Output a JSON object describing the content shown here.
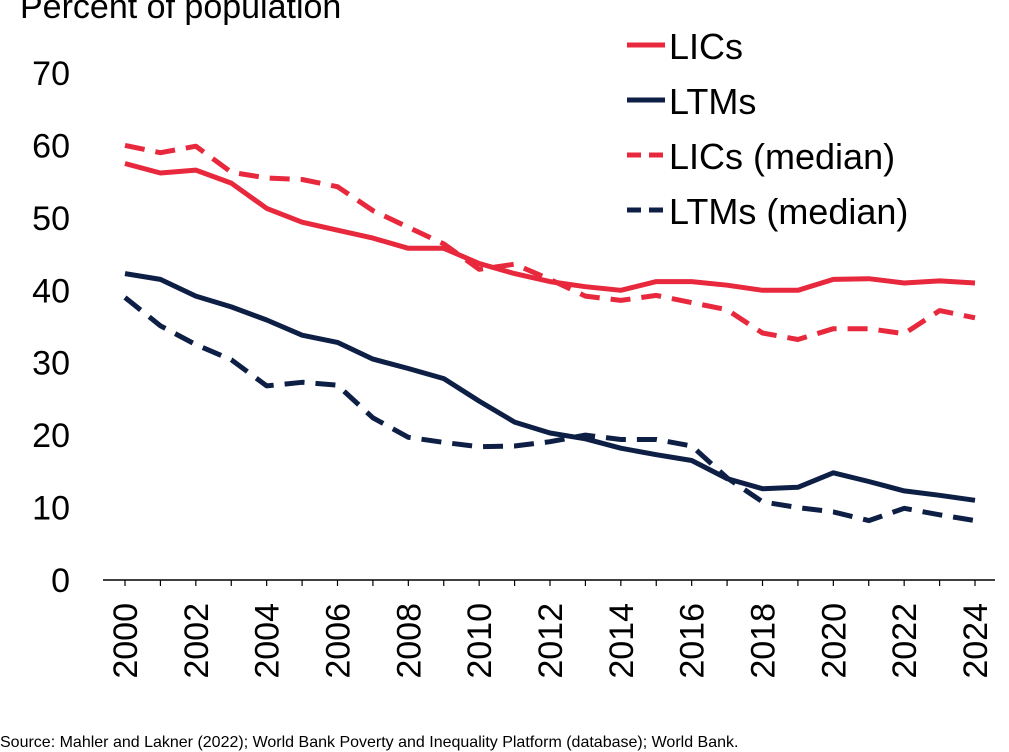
{
  "chart_data": {
    "type": "line",
    "ylabel": "Percent of population",
    "ylim": [
      0,
      70
    ],
    "yticks": [
      0,
      10,
      20,
      30,
      40,
      50,
      60,
      70
    ],
    "x": [
      2000,
      2001,
      2002,
      2003,
      2004,
      2005,
      2006,
      2007,
      2008,
      2009,
      2010,
      2011,
      2012,
      2013,
      2014,
      2015,
      2016,
      2017,
      2018,
      2019,
      2020,
      2021,
      2022,
      2023,
      2024
    ],
    "xticks": [
      2000,
      2002,
      2004,
      2006,
      2008,
      2010,
      2012,
      2014,
      2016,
      2018,
      2020,
      2022,
      2024
    ],
    "grid": false,
    "legend_position": "top-right",
    "series": [
      {
        "name": "LICs",
        "color": "#e8283c",
        "dash": "solid",
        "values": [
          57.5,
          56.2,
          56.6,
          54.8,
          51.3,
          49.4,
          48.3,
          47.2,
          45.8,
          45.8,
          43.7,
          42.3,
          41.2,
          40.5,
          40.0,
          41.2,
          41.2,
          40.7,
          40.0,
          40.0,
          41.5,
          41.6,
          41.0,
          41.3,
          41.0
        ]
      },
      {
        "name": "LTMs",
        "color": "#0e1f45",
        "dash": "solid",
        "values": [
          42.3,
          41.5,
          39.2,
          37.7,
          35.9,
          33.8,
          32.8,
          30.5,
          29.2,
          27.8,
          24.7,
          21.8,
          20.3,
          19.5,
          18.2,
          17.3,
          16.5,
          14.0,
          12.6,
          12.8,
          14.8,
          13.6,
          12.3,
          11.7,
          11.0
        ]
      },
      {
        "name": "LICs (median)",
        "color": "#e8283c",
        "dash": "dashed",
        "values": [
          60.0,
          59.0,
          59.9,
          56.3,
          55.5,
          55.3,
          54.3,
          51.0,
          48.7,
          46.4,
          42.9,
          43.6,
          41.5,
          39.2,
          38.6,
          39.3,
          38.3,
          37.3,
          34.1,
          33.2,
          34.7,
          34.7,
          34.0,
          37.2,
          36.2
        ]
      },
      {
        "name": "LTMs (median)",
        "color": "#0e1f45",
        "dash": "dashed",
        "values": [
          39.0,
          35.1,
          32.5,
          30.4,
          26.8,
          27.3,
          26.9,
          22.4,
          19.7,
          19.0,
          18.4,
          18.5,
          19.1,
          20.0,
          19.4,
          19.4,
          18.5,
          14.1,
          10.8,
          10.0,
          9.4,
          8.2,
          9.9,
          9.0,
          8.2
        ]
      }
    ]
  },
  "source": "Source: Mahler and Lakner (2022); World Bank Poverty and Inequality Platform (database); World Bank."
}
